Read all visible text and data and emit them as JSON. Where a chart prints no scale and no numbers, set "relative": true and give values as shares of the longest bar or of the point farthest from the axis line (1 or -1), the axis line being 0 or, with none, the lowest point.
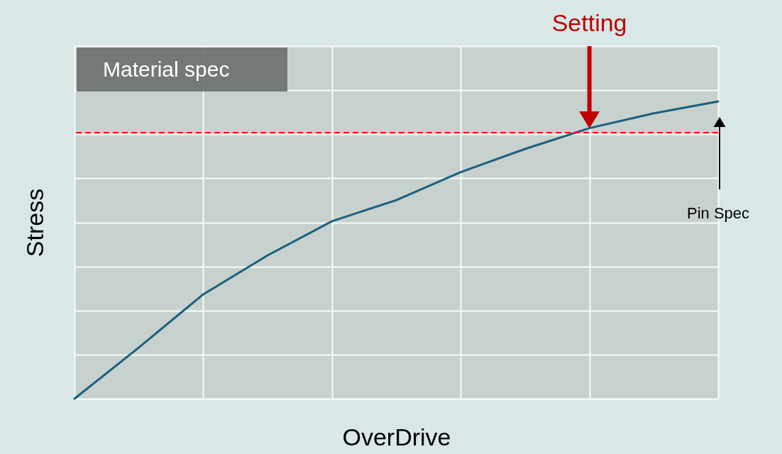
{
  "chart_data": {
    "type": "line",
    "relative": true,
    "xlabel": "OverDrive",
    "ylabel": "Stress",
    "categories": [
      null,
      null,
      null,
      null,
      null,
      null,
      null,
      null,
      null,
      null,
      null
    ],
    "values": [
      0,
      0.172,
      0.351,
      0.482,
      0.597,
      0.668,
      0.762,
      0.84,
      0.91,
      0.96,
      1
    ],
    "color": "#1a6080",
    "grid": true,
    "marker": "none",
    "line_style": "solid",
    "ref_lines": [
      {
        "axis": "y",
        "value": 0.895,
        "label": "Material spec",
        "color": "#ff0000",
        "line_style": "dashed"
      }
    ],
    "annotations": [
      "Setting",
      "Pin Spec"
    ]
  }
}
